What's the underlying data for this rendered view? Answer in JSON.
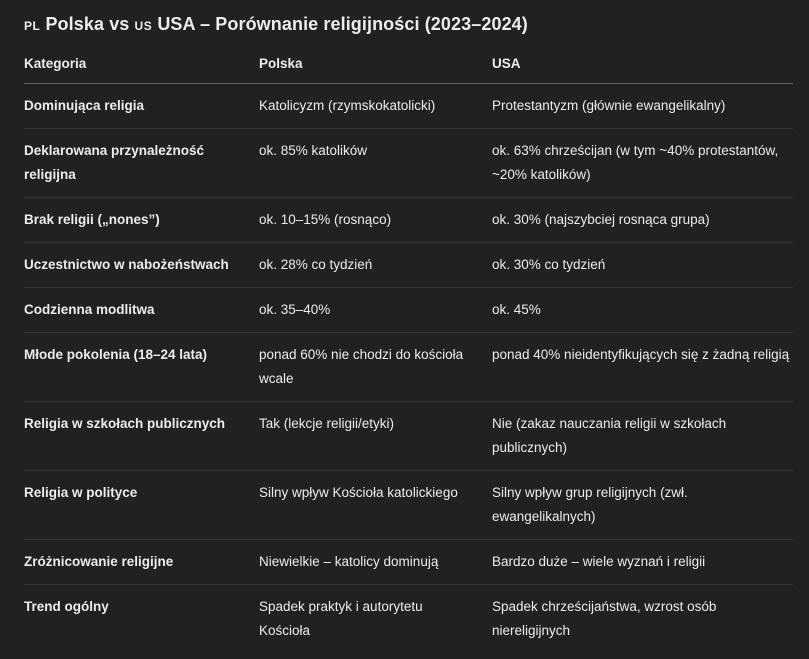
{
  "colors": {
    "background": "#212121",
    "text": "#ececec",
    "header_divider": "#5d5d5d",
    "row_divider": "#363636"
  },
  "title": {
    "flag_pl": "PL",
    "before_vs": "Polska vs",
    "flag_us": "US",
    "after_vs": "USA – Porównanie religijności (2023–2024)"
  },
  "table": {
    "headers": [
      "Kategoria",
      "Polska",
      "USA"
    ],
    "rows": [
      {
        "kategoria": "Dominująca religia",
        "polska": "Katolicyzm (rzymskokatolicki)",
        "usa": "Protestantyzm (głównie ewangelikalny)"
      },
      {
        "kategoria": "Deklarowana przynależność religijna",
        "polska": "ok. 85% katolików",
        "usa": "ok. 63% chrześcijan (w tym ~40% protestantów, ~20% katolików)"
      },
      {
        "kategoria": "Brak religii („nones”)",
        "polska": "ok. 10–15% (rosnąco)",
        "usa": "ok. 30% (najszybciej rosnąca grupa)"
      },
      {
        "kategoria": "Uczestnictwo w nabożeństwach",
        "polska": "ok. 28% co tydzień",
        "usa": "ok. 30% co tydzień"
      },
      {
        "kategoria": "Codzienna modlitwa",
        "polska": "ok. 35–40%",
        "usa": "ok. 45%"
      },
      {
        "kategoria": "Młode pokolenia (18–24 lata)",
        "polska": "ponad 60% nie chodzi do kościoła wcale",
        "usa": "ponad 40% nieidentyfikujących się z żadną religią"
      },
      {
        "kategoria": "Religia w szkołach publicznych",
        "polska": "Tak (lekcje religii/etyki)",
        "usa": "Nie (zakaz nauczania religii w szkołach publicznych)"
      },
      {
        "kategoria": "Religia w polityce",
        "polska": "Silny wpływ Kościoła katolickiego",
        "usa": "Silny wpływ grup religijnych (zwł. ewangelikalnych)"
      },
      {
        "kategoria": "Zróżnicowanie religijne",
        "polska": "Niewielkie – katolicy dominują",
        "usa": "Bardzo duże – wiele wyznań i religii"
      },
      {
        "kategoria": "Trend ogólny",
        "polska": "Spadek praktyk i autorytetu Kościoła",
        "usa": "Spadek chrześcijaństwa, wzrost osób niereligijnych"
      }
    ]
  }
}
